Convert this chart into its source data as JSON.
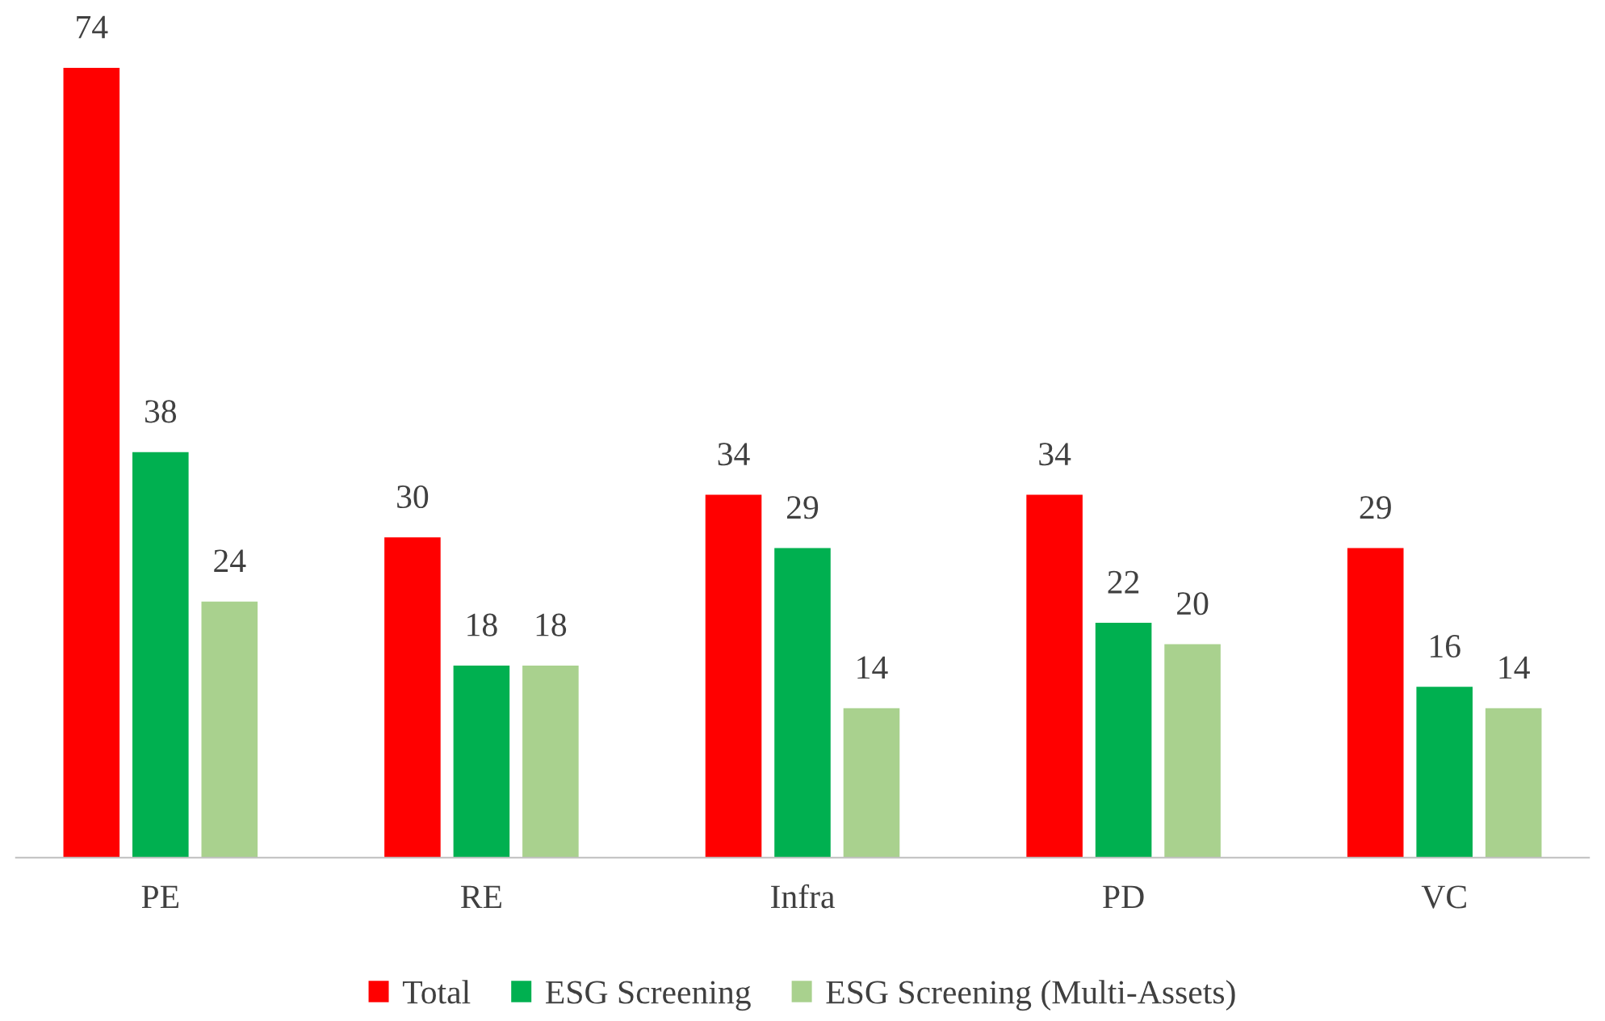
{
  "chart_data": {
    "type": "bar",
    "categories": [
      "PE",
      "RE",
      "Infra",
      "PD",
      "VC"
    ],
    "series": [
      {
        "name": "Total",
        "color": "#ff0000",
        "values": [
          74,
          30,
          34,
          34,
          29
        ]
      },
      {
        "name": "ESG Screening",
        "color": "#00b050",
        "values": [
          38,
          18,
          29,
          22,
          16
        ]
      },
      {
        "name": "ESG Screening (Multi-Assets)",
        "color": "#a9d18e",
        "values": [
          24,
          18,
          14,
          20,
          14
        ]
      }
    ],
    "data_labels": true,
    "legend": "bottom"
  }
}
